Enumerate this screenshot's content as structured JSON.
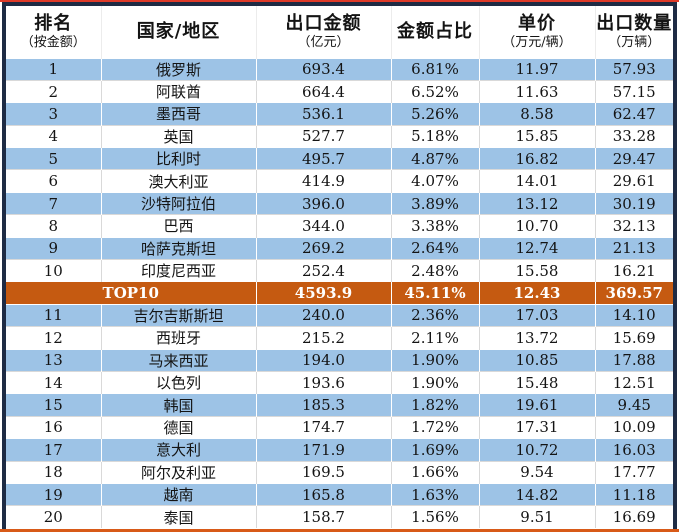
{
  "chart_data": {
    "type": "table",
    "columns": [
      {
        "label": "排名",
        "sublabel": "（按金额）"
      },
      {
        "label": "国家/地区",
        "sublabel": ""
      },
      {
        "label": "出口金额",
        "sublabel": "（亿元）"
      },
      {
        "label": "金额占比",
        "sublabel": ""
      },
      {
        "label": "单价",
        "sublabel": "（万元/辆）"
      },
      {
        "label": "出口数量",
        "sublabel": "（万辆）"
      }
    ],
    "rows": [
      {
        "rank": "1",
        "country": "俄罗斯",
        "amount": "693.4",
        "share": "6.81%",
        "price": "11.97",
        "qty": "57.93"
      },
      {
        "rank": "2",
        "country": "阿联酋",
        "amount": "664.4",
        "share": "6.52%",
        "price": "11.63",
        "qty": "57.15"
      },
      {
        "rank": "3",
        "country": "墨西哥",
        "amount": "536.1",
        "share": "5.26%",
        "price": "8.58",
        "qty": "62.47"
      },
      {
        "rank": "4",
        "country": "英国",
        "amount": "527.7",
        "share": "5.18%",
        "price": "15.85",
        "qty": "33.28"
      },
      {
        "rank": "5",
        "country": "比利时",
        "amount": "495.7",
        "share": "4.87%",
        "price": "16.82",
        "qty": "29.47"
      },
      {
        "rank": "6",
        "country": "澳大利亚",
        "amount": "414.9",
        "share": "4.07%",
        "price": "14.01",
        "qty": "29.61"
      },
      {
        "rank": "7",
        "country": "沙特阿拉伯",
        "amount": "396.0",
        "share": "3.89%",
        "price": "13.12",
        "qty": "30.19"
      },
      {
        "rank": "8",
        "country": "巴西",
        "amount": "344.0",
        "share": "3.38%",
        "price": "10.70",
        "qty": "32.13"
      },
      {
        "rank": "9",
        "country": "哈萨克斯坦",
        "amount": "269.2",
        "share": "2.64%",
        "price": "12.74",
        "qty": "21.13"
      },
      {
        "rank": "10",
        "country": "印度尼西亚",
        "amount": "252.4",
        "share": "2.48%",
        "price": "15.58",
        "qty": "16.21"
      },
      {
        "rank": "TOP10",
        "country": "",
        "amount": "4593.9",
        "share": "45.11%",
        "price": "12.43",
        "qty": "369.57",
        "highlight": true
      },
      {
        "rank": "11",
        "country": "吉尔吉斯斯坦",
        "amount": "240.0",
        "share": "2.36%",
        "price": "17.03",
        "qty": "14.10"
      },
      {
        "rank": "12",
        "country": "西班牙",
        "amount": "215.2",
        "share": "2.11%",
        "price": "13.72",
        "qty": "15.69"
      },
      {
        "rank": "13",
        "country": "马来西亚",
        "amount": "194.0",
        "share": "1.90%",
        "price": "10.85",
        "qty": "17.88"
      },
      {
        "rank": "14",
        "country": "以色列",
        "amount": "193.6",
        "share": "1.90%",
        "price": "15.48",
        "qty": "12.51"
      },
      {
        "rank": "15",
        "country": "韩国",
        "amount": "185.3",
        "share": "1.82%",
        "price": "19.61",
        "qty": "9.45"
      },
      {
        "rank": "16",
        "country": "德国",
        "amount": "174.7",
        "share": "1.72%",
        "price": "17.31",
        "qty": "10.09"
      },
      {
        "rank": "17",
        "country": "意大利",
        "amount": "171.9",
        "share": "1.69%",
        "price": "10.72",
        "qty": "16.03"
      },
      {
        "rank": "18",
        "country": "阿尔及利亚",
        "amount": "169.5",
        "share": "1.66%",
        "price": "9.54",
        "qty": "17.77"
      },
      {
        "rank": "19",
        "country": "越南",
        "amount": "165.8",
        "share": "1.63%",
        "price": "14.82",
        "qty": "11.18"
      },
      {
        "rank": "20",
        "country": "泰国",
        "amount": "158.7",
        "share": "1.56%",
        "price": "9.51",
        "qty": "16.69"
      }
    ]
  },
  "colors": {
    "row_blue": "#9DC3E6",
    "row_white": "#FFFFFF",
    "highlight_bg": "#C55A11",
    "highlight_text": "#FFFFFF",
    "border_dark": "#1E2B44",
    "top_line": "#DF3A28",
    "bottom_line": "#D85A18",
    "text": "#141414"
  }
}
